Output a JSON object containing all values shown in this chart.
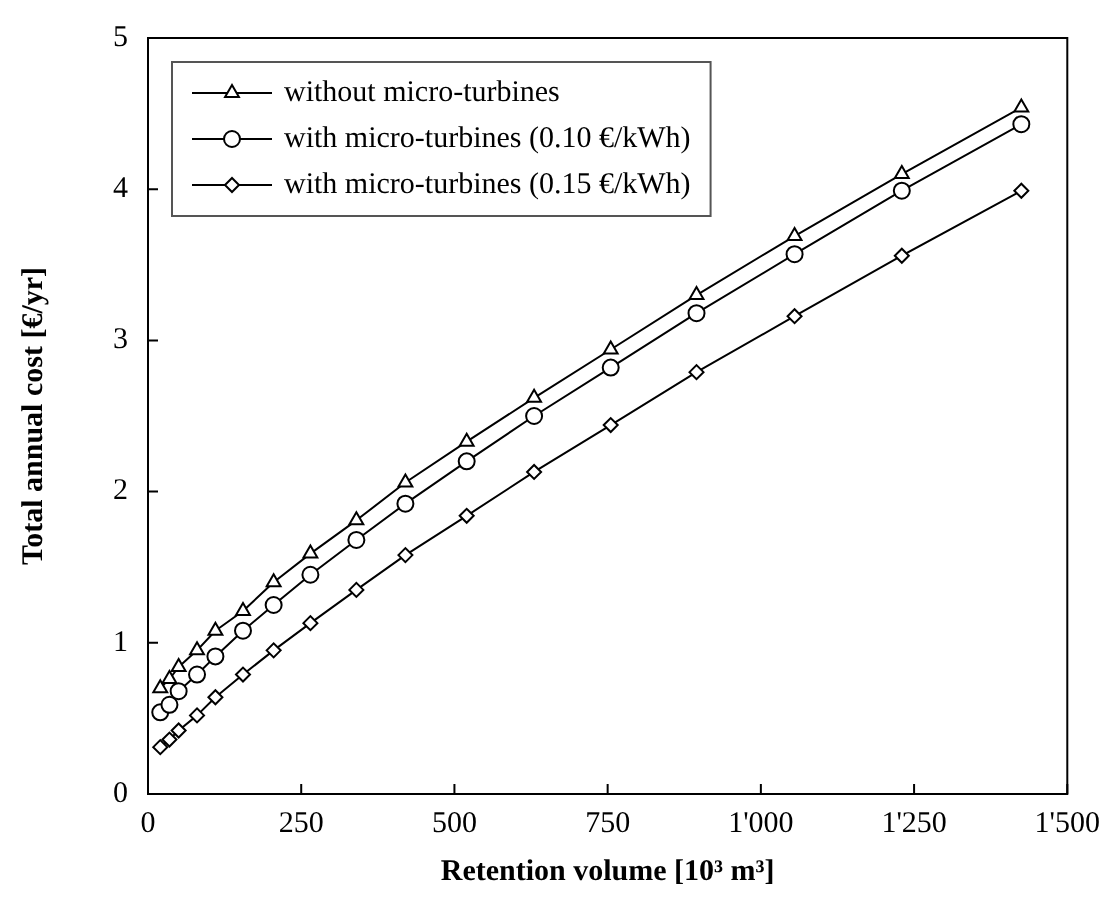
{
  "chart_data": {
    "type": "line",
    "xlabel": "Retention volume [10³ m³]",
    "ylabel": "Total annual cost [€/yr]",
    "x": [
      20,
      35,
      50,
      80,
      110,
      155,
      205,
      265,
      340,
      420,
      520,
      630,
      755,
      895,
      1055,
      1230,
      1425
    ],
    "series": [
      {
        "name": "without micro-turbines",
        "color": "#000000",
        "marker": "triangle",
        "values": [
          0.7,
          0.76,
          0.84,
          0.95,
          1.08,
          1.21,
          1.4,
          1.59,
          1.81,
          2.06,
          2.33,
          2.62,
          2.94,
          3.3,
          3.69,
          4.1,
          4.54
        ]
      },
      {
        "name": "with micro-turbines (0.10 €/kWh)",
        "color": "#000000",
        "marker": "circle",
        "values": [
          0.54,
          0.59,
          0.68,
          0.79,
          0.91,
          1.08,
          1.25,
          1.45,
          1.68,
          1.92,
          2.2,
          2.5,
          2.82,
          3.18,
          3.57,
          3.99,
          4.43
        ]
      },
      {
        "name": "with micro-turbines (0.15 €/kWh)",
        "color": "#000000",
        "marker": "diamond",
        "values": [
          0.31,
          0.36,
          0.42,
          0.52,
          0.64,
          0.79,
          0.95,
          1.13,
          1.35,
          1.58,
          1.84,
          2.13,
          2.44,
          2.79,
          3.16,
          3.56,
          3.99
        ]
      }
    ],
    "xlim": [
      0,
      1500
    ],
    "xticks": [
      0,
      250,
      500,
      750,
      {
        "value": 1000,
        "label": "1'000"
      },
      {
        "value": 1250,
        "label": "1'250"
      },
      {
        "value": 1500,
        "label": "1'500"
      }
    ],
    "ylim": [
      0,
      5
    ],
    "yticks": [
      0,
      1,
      2,
      3,
      4,
      5
    ],
    "grid": false,
    "legend": "top left",
    "line_style": "solid"
  }
}
